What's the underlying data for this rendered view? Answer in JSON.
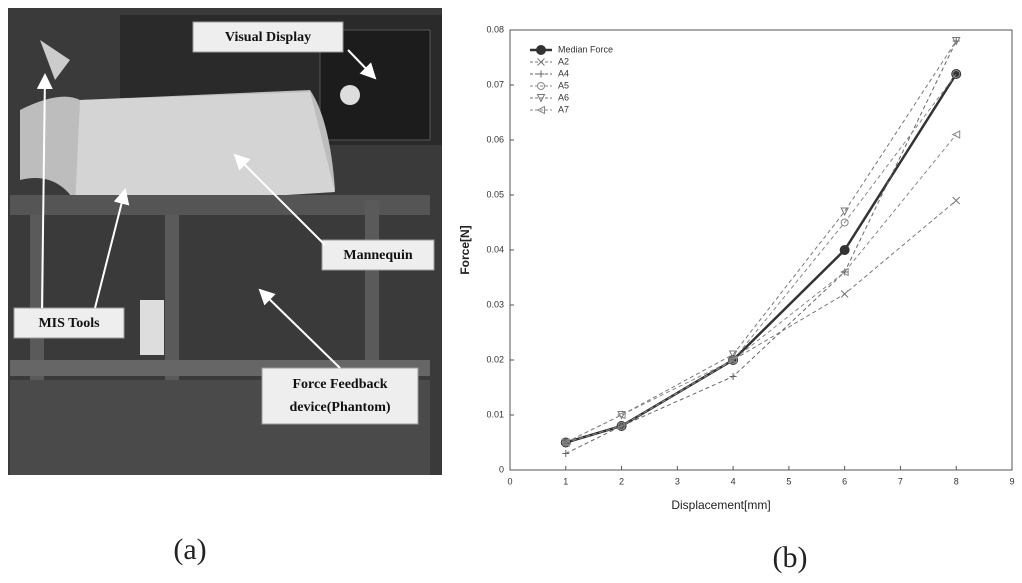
{
  "photo": {
    "labels": {
      "visual_display": "Visual Display",
      "mannequin": "Mannequin",
      "mis_tools": "MIS Tools",
      "force_feedback": [
        "Force Feedback",
        "device(Phantom)"
      ]
    }
  },
  "captions": {
    "a": "(a)",
    "b": "(b)"
  },
  "chart_data": {
    "type": "line",
    "x_label": "Displacement[mm]",
    "y_label": "Force[N]",
    "x": [
      1,
      2,
      4,
      6,
      8
    ],
    "xlim": [
      0,
      9
    ],
    "xticks": [
      0,
      1,
      2,
      3,
      4,
      5,
      6,
      7,
      8,
      9
    ],
    "ylim": [
      0,
      0.08
    ],
    "yticks": [
      0,
      0.01,
      0.02,
      0.03,
      0.04,
      0.05,
      0.06,
      0.07,
      0.08
    ],
    "legend": "upper left",
    "series": [
      {
        "name": "Median Force",
        "color": "#333333",
        "linestyle": "solid",
        "marker": "circle",
        "values": [
          0.005,
          0.008,
          0.02,
          0.04,
          0.072
        ]
      },
      {
        "name": "A2",
        "color": "#777777",
        "linestyle": "dashed",
        "marker": "x",
        "values": [
          0.005,
          0.008,
          0.02,
          0.032,
          0.049
        ]
      },
      {
        "name": "A4",
        "color": "#666666",
        "linestyle": "dashed",
        "marker": "plus",
        "values": [
          0.003,
          0.008,
          0.017,
          0.036,
          0.078
        ]
      },
      {
        "name": "A5",
        "color": "#888888",
        "linestyle": "dashed",
        "marker": "open-circle",
        "values": [
          0.005,
          0.008,
          0.02,
          0.045,
          0.072
        ]
      },
      {
        "name": "A6",
        "color": "#777777",
        "linestyle": "dashed",
        "marker": "down-triangle",
        "values": [
          0.005,
          0.01,
          0.021,
          0.047,
          0.078
        ]
      },
      {
        "name": "A7",
        "color": "#888888",
        "linestyle": "dashed",
        "marker": "left-triangle",
        "values": [
          0.005,
          0.01,
          0.02,
          0.036,
          0.061
        ]
      }
    ]
  }
}
